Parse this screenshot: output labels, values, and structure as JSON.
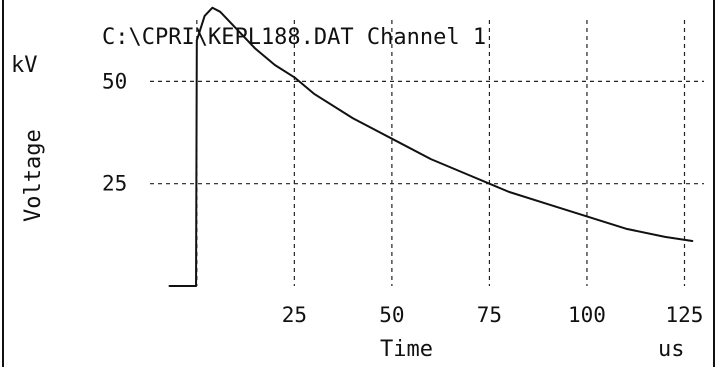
{
  "chart_data": {
    "type": "line",
    "title": "C:\\CPRI\\KEPL188.DAT   Channel   1",
    "xlabel": "Time",
    "x_unit": "us",
    "ylabel": "Voltage",
    "y_unit": "kV",
    "xlim": [
      -12,
      130
    ],
    "ylim": [
      0,
      65
    ],
    "x_ticks": [
      25,
      50,
      75,
      100,
      125
    ],
    "y_ticks": [
      25,
      50
    ],
    "x_gridlines": [
      0,
      25,
      50,
      75,
      100,
      125
    ],
    "y_gridlines": [
      25,
      50
    ],
    "grid": true,
    "series": [
      {
        "values": [
          {
            "x": -7,
            "y": 0
          },
          {
            "x": -1,
            "y": 0
          },
          {
            "x": -0.2,
            "y": 0
          },
          {
            "x": 0,
            "y": 60
          },
          {
            "x": 1,
            "y": 63
          },
          {
            "x": 2,
            "y": 66
          },
          {
            "x": 3,
            "y": 67
          },
          {
            "x": 4,
            "y": 68
          },
          {
            "x": 6,
            "y": 67
          },
          {
            "x": 10,
            "y": 63
          },
          {
            "x": 15,
            "y": 58
          },
          {
            "x": 20,
            "y": 54
          },
          {
            "x": 25,
            "y": 51
          },
          {
            "x": 30,
            "y": 47
          },
          {
            "x": 40,
            "y": 41
          },
          {
            "x": 50,
            "y": 36
          },
          {
            "x": 60,
            "y": 31
          },
          {
            "x": 70,
            "y": 27
          },
          {
            "x": 75,
            "y": 25
          },
          {
            "x": 80,
            "y": 23
          },
          {
            "x": 90,
            "y": 20
          },
          {
            "x": 100,
            "y": 17
          },
          {
            "x": 110,
            "y": 14
          },
          {
            "x": 120,
            "y": 12
          },
          {
            "x": 127,
            "y": 11
          }
        ]
      }
    ]
  }
}
